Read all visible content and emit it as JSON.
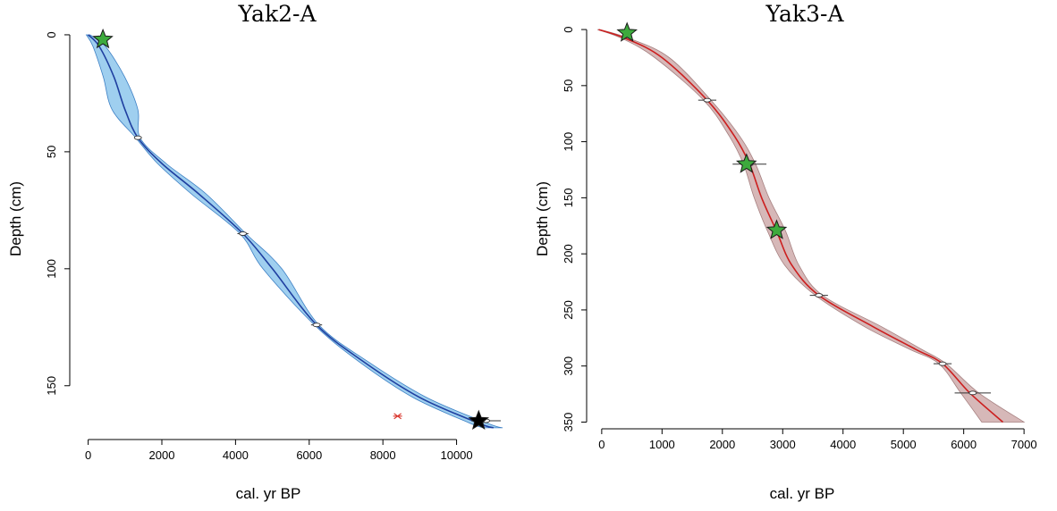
{
  "chart_data": [
    {
      "type": "line",
      "title": "Yak2-A",
      "xlabel": "cal. yr BP",
      "ylabel": "Depth (cm)",
      "xlim": [
        -500,
        11200
      ],
      "ylim": [
        173,
        -8
      ],
      "xticks": [
        0,
        2000,
        4000,
        6000,
        8000,
        10000
      ],
      "yticks": [
        0,
        50,
        100,
        150
      ],
      "colors": {
        "line": "#1f3fa0",
        "band": "#7fbfea",
        "band_edge": "#3c7fc4",
        "star_green": "#3daa3d",
        "star_black": "#000000",
        "outlier": "#d9342b"
      },
      "series": [
        {
          "values": [
            {
              "x": 0,
              "y": 0
            },
            {
              "x": 300,
              "y": 5
            },
            {
              "x": 700,
              "y": 18
            },
            {
              "x": 1000,
              "y": 32
            },
            {
              "x": 1350,
              "y": 44
            },
            {
              "x": 2000,
              "y": 55
            },
            {
              "x": 3000,
              "y": 68
            },
            {
              "x": 4200,
              "y": 85
            },
            {
              "x": 5000,
              "y": 100
            },
            {
              "x": 6200,
              "y": 124
            },
            {
              "x": 7500,
              "y": 140
            },
            {
              "x": 9000,
              "y": 155
            },
            {
              "x": 10600,
              "y": 166
            },
            {
              "x": 11000,
              "y": 168
            }
          ],
          "band_width": [
            {
              "x": 0,
              "w": 50
            },
            {
              "x": 500,
              "w": 250
            },
            {
              "x": 1000,
              "w": 350
            },
            {
              "x": 1350,
              "w": 60
            },
            {
              "x": 3000,
              "w": 200
            },
            {
              "x": 4200,
              "w": 80
            },
            {
              "x": 5200,
              "w": 300
            },
            {
              "x": 6200,
              "w": 60
            },
            {
              "x": 8000,
              "w": 150
            },
            {
              "x": 11000,
              "w": 250
            }
          ]
        }
      ],
      "dated_samples": [
        {
          "age": 1350,
          "depth": 44,
          "err": 80
        },
        {
          "age": 4200,
          "depth": 85,
          "err": 150
        },
        {
          "age": 6200,
          "depth": 124,
          "err": 150
        },
        {
          "age": 10800,
          "depth": 165,
          "err": 400
        }
      ],
      "stars": [
        {
          "age": 400,
          "depth": 2,
          "color": "green"
        },
        {
          "age": 10600,
          "depth": 165,
          "color": "black"
        }
      ],
      "outliers": [
        {
          "age": 8400,
          "depth": 163
        }
      ]
    },
    {
      "type": "line",
      "title": "Yak3-A",
      "xlabel": "cal. yr BP",
      "ylabel": "Depth (cm)",
      "xlim": [
        -250,
        7250
      ],
      "ylim": [
        356,
        -12
      ],
      "xticks": [
        0,
        1000,
        2000,
        3000,
        4000,
        5000,
        6000,
        7000
      ],
      "yticks": [
        0,
        50,
        100,
        150,
        200,
        250,
        300,
        350
      ],
      "colors": {
        "line": "#cc1f1f",
        "band": "#c8a0a0",
        "band_edge": "#a68080",
        "star_green": "#3daa3d"
      },
      "series": [
        {
          "values": [
            {
              "x": -50,
              "y": 0
            },
            {
              "x": 400,
              "y": 8
            },
            {
              "x": 1000,
              "y": 25
            },
            {
              "x": 1750,
              "y": 63
            },
            {
              "x": 2200,
              "y": 95
            },
            {
              "x": 2450,
              "y": 120
            },
            {
              "x": 2650,
              "y": 150
            },
            {
              "x": 2900,
              "y": 180
            },
            {
              "x": 3150,
              "y": 210
            },
            {
              "x": 3600,
              "y": 237
            },
            {
              "x": 4500,
              "y": 265
            },
            {
              "x": 5200,
              "y": 285
            },
            {
              "x": 5650,
              "y": 298
            },
            {
              "x": 6100,
              "y": 324
            },
            {
              "x": 6650,
              "y": 350
            }
          ],
          "band_width": [
            {
              "x": -50,
              "w": 20
            },
            {
              "x": 1000,
              "w": 120
            },
            {
              "x": 1750,
              "w": 60
            },
            {
              "x": 2450,
              "w": 100
            },
            {
              "x": 2900,
              "w": 150
            },
            {
              "x": 3600,
              "w": 60
            },
            {
              "x": 4600,
              "w": 150
            },
            {
              "x": 5650,
              "w": 60
            },
            {
              "x": 6100,
              "w": 150
            },
            {
              "x": 6650,
              "w": 350
            }
          ]
        }
      ],
      "dated_samples": [
        {
          "age": 1750,
          "depth": 63,
          "err": 150
        },
        {
          "age": 2450,
          "depth": 120,
          "err": 280
        },
        {
          "age": 3600,
          "depth": 237,
          "err": 150
        },
        {
          "age": 5650,
          "depth": 298,
          "err": 150
        },
        {
          "age": 6150,
          "depth": 324,
          "err": 300
        }
      ],
      "stars": [
        {
          "age": 420,
          "depth": 3,
          "color": "green"
        },
        {
          "age": 2400,
          "depth": 120,
          "color": "green"
        },
        {
          "age": 2900,
          "depth": 179,
          "color": "green"
        }
      ],
      "outliers": []
    }
  ]
}
